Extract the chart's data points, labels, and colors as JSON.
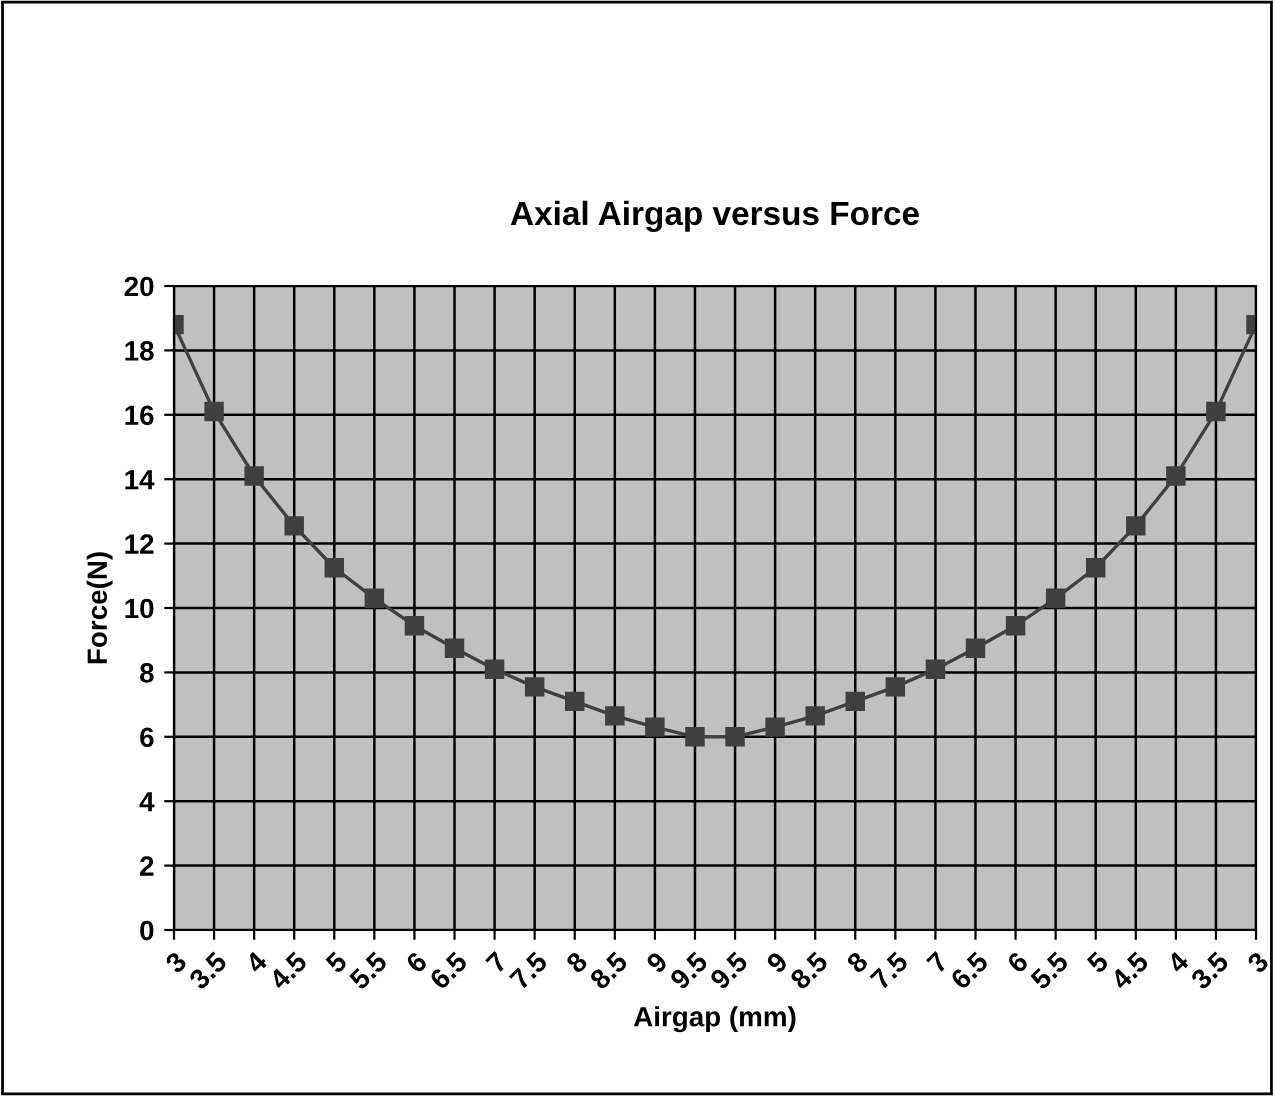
{
  "chart_data": {
    "type": "line",
    "title": "Axial Airgap versus Force",
    "xlabel": "Airgap (mm)",
    "ylabel": "Force(N)",
    "categories": [
      "3",
      "3.5",
      "4",
      "4.5",
      "5",
      "5.5",
      "6",
      "6.5",
      "7",
      "7.5",
      "8",
      "8.5",
      "9",
      "9.5",
      "9.5",
      "9",
      "8.5",
      "8",
      "7.5",
      "7",
      "6.5",
      "6",
      "5.5",
      "5",
      "4.5",
      "4",
      "3.5",
      "3"
    ],
    "series": [
      {
        "color": "#404040",
        "values": [
          18.8,
          16.1,
          14.1,
          12.55,
          11.25,
          10.3,
          9.45,
          8.75,
          8.1,
          7.55,
          7.1,
          6.65,
          6.3,
          6.0,
          6.0,
          6.3,
          6.65,
          7.1,
          7.55,
          8.1,
          8.75,
          9.45,
          10.3,
          11.25,
          12.55,
          14.1,
          16.1,
          18.8
        ]
      }
    ],
    "ylim": [
      0,
      20
    ],
    "yticks": [
      0,
      2,
      4,
      6,
      8,
      10,
      12,
      14,
      16,
      18,
      20
    ],
    "grid": true,
    "marker": "square",
    "line_style": "solid",
    "legend": false
  }
}
